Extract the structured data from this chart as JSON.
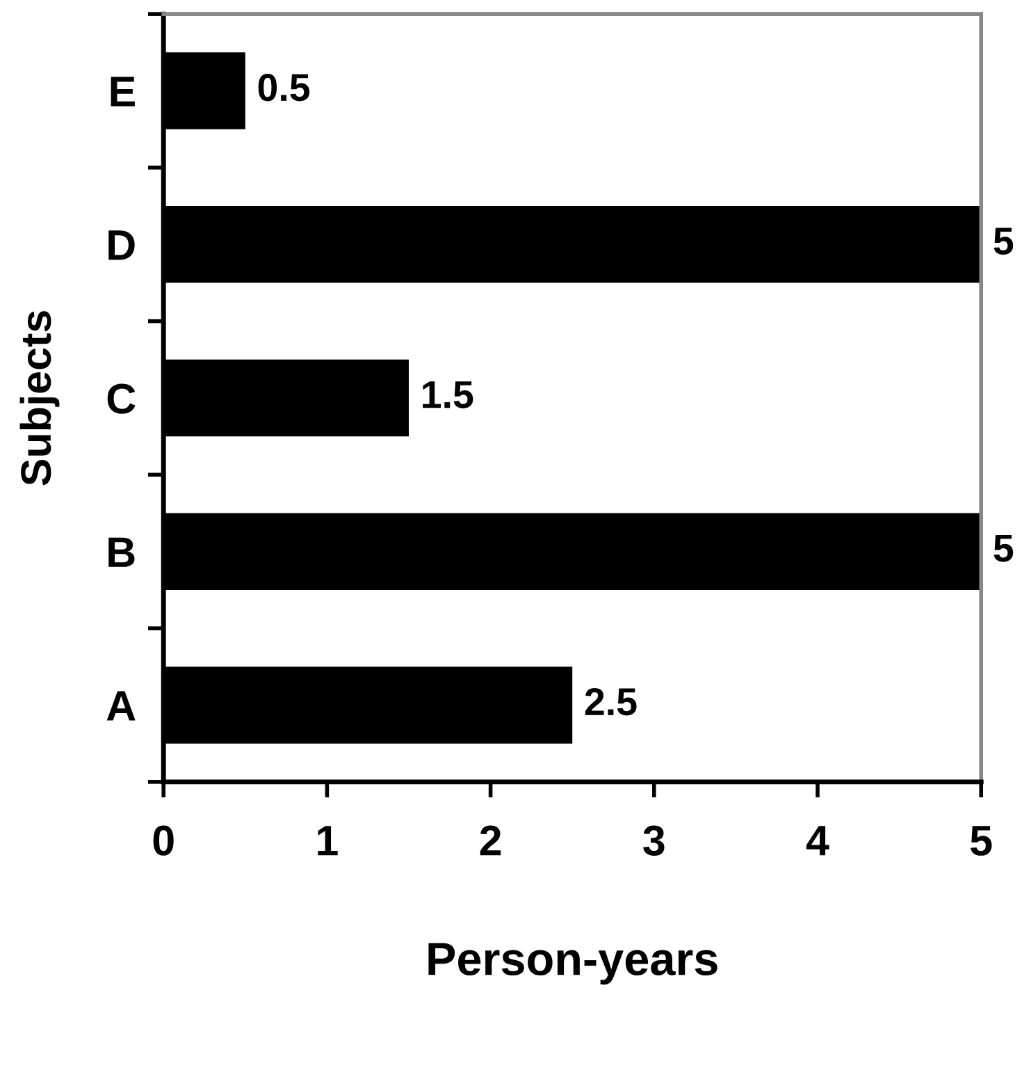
{
  "chart_data": {
    "type": "bar",
    "orientation": "horizontal",
    "categories": [
      "E",
      "D",
      "C",
      "B",
      "A"
    ],
    "values": [
      0.5,
      5,
      1.5,
      5,
      2.5
    ],
    "color": "#000000",
    "xlim": [
      0,
      5
    ],
    "xticks": [
      0,
      1,
      2,
      3,
      4,
      5
    ],
    "xlabel": "Person-years",
    "ylabel": "Subjects",
    "data_labels": true,
    "grid": false
  }
}
